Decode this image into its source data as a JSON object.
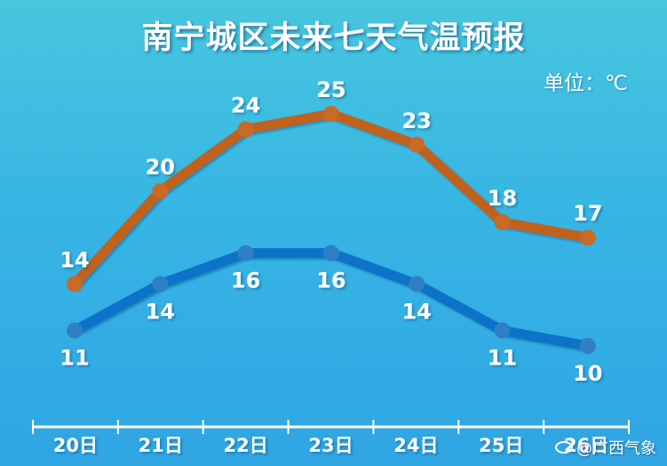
{
  "header": {
    "title": "南宁城区未来七天气温预报",
    "unit": "单位：℃"
  },
  "watermark": {
    "icon": "weibo-icon",
    "text": "@广西气象"
  },
  "chart_data": {
    "type": "line",
    "categories": [
      "20日",
      "21日",
      "22日",
      "23日",
      "24日",
      "25日",
      "26日"
    ],
    "series": [
      {
        "values": [
          14,
          20,
          24,
          25,
          23,
          18,
          17
        ],
        "color": "#c0621e",
        "marker_color": "#c96a26"
      },
      {
        "values": [
          11,
          14,
          16,
          16,
          14,
          11,
          10
        ],
        "color": "#0a73c8",
        "marker_color": "#2f7fc7"
      }
    ],
    "ylim": [
      10,
      25
    ],
    "grid": false,
    "legend": "none",
    "axis_color": "#ffffff",
    "label_color": "#ffffff"
  }
}
